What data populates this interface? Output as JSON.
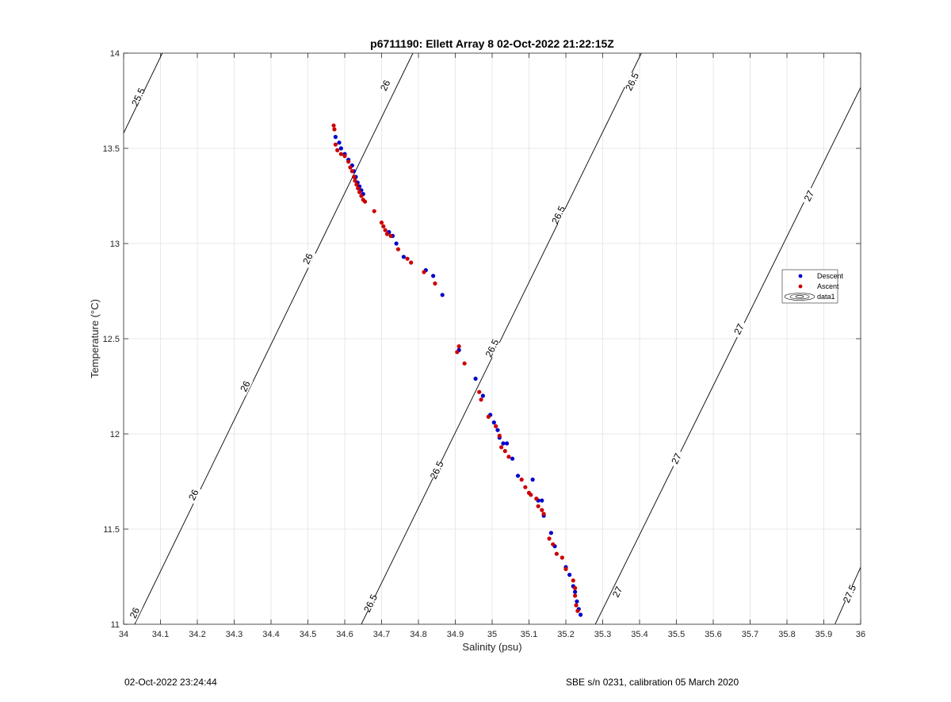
{
  "chart_data": {
    "type": "scatter",
    "title": "p6711190: Ellett Array 8 02-Oct-2022 21:22:15Z",
    "xlabel": "Salinity (psu)",
    "ylabel": "Temperature (°C)",
    "xlim": [
      34,
      36
    ],
    "ylim": [
      11,
      14
    ],
    "xticks": [
      "34",
      "34.1",
      "34.2",
      "34.3",
      "34.4",
      "34.5",
      "34.6",
      "34.7",
      "34.8",
      "34.9",
      "35",
      "35.1",
      "35.2",
      "35.3",
      "35.4",
      "35.5",
      "35.6",
      "35.7",
      "35.8",
      "35.9",
      "36"
    ],
    "yticks": [
      "11",
      "11.5",
      "12",
      "12.5",
      "13",
      "13.5",
      "14"
    ],
    "grid": true,
    "legend": {
      "placement": "right",
      "entries": [
        "Descent",
        "Ascent",
        "data1"
      ]
    },
    "series": [
      {
        "name": "Descent",
        "color": "#0000cc",
        "points": [
          [
            34.575,
            13.56
          ],
          [
            34.585,
            13.53
          ],
          [
            34.59,
            13.5
          ],
          [
            34.6,
            13.47
          ],
          [
            34.61,
            13.44
          ],
          [
            34.62,
            13.41
          ],
          [
            34.625,
            13.38
          ],
          [
            34.63,
            13.35
          ],
          [
            34.635,
            13.32
          ],
          [
            34.64,
            13.3
          ],
          [
            34.645,
            13.28
          ],
          [
            34.65,
            13.26
          ],
          [
            34.72,
            13.06
          ],
          [
            34.73,
            13.04
          ],
          [
            34.74,
            13.0
          ],
          [
            34.76,
            12.93
          ],
          [
            34.82,
            12.86
          ],
          [
            34.84,
            12.83
          ],
          [
            34.865,
            12.73
          ],
          [
            34.91,
            12.44
          ],
          [
            34.955,
            12.29
          ],
          [
            34.975,
            12.2
          ],
          [
            34.995,
            12.1
          ],
          [
            35.005,
            12.06
          ],
          [
            35.015,
            12.02
          ],
          [
            35.02,
            11.98
          ],
          [
            35.03,
            11.95
          ],
          [
            35.04,
            11.95
          ],
          [
            35.055,
            11.87
          ],
          [
            35.07,
            11.78
          ],
          [
            35.11,
            11.76
          ],
          [
            35.125,
            11.65
          ],
          [
            35.135,
            11.65
          ],
          [
            35.14,
            11.57
          ],
          [
            35.16,
            11.48
          ],
          [
            35.17,
            11.41
          ],
          [
            35.2,
            11.3
          ],
          [
            35.21,
            11.26
          ],
          [
            35.22,
            11.2
          ],
          [
            35.225,
            11.17
          ],
          [
            35.23,
            11.12
          ],
          [
            35.235,
            11.08
          ],
          [
            35.24,
            11.05
          ]
        ]
      },
      {
        "name": "Ascent",
        "color": "#cc0000",
        "points": [
          [
            34.57,
            13.62
          ],
          [
            34.572,
            13.6
          ],
          [
            34.575,
            13.52
          ],
          [
            34.58,
            13.49
          ],
          [
            34.59,
            13.47
          ],
          [
            34.6,
            13.46
          ],
          [
            34.61,
            13.43
          ],
          [
            34.615,
            13.4
          ],
          [
            34.62,
            13.38
          ],
          [
            34.625,
            13.35
          ],
          [
            34.628,
            13.33
          ],
          [
            34.632,
            13.31
          ],
          [
            34.636,
            13.29
          ],
          [
            34.64,
            13.27
          ],
          [
            34.645,
            13.25
          ],
          [
            34.65,
            13.23
          ],
          [
            34.655,
            13.22
          ],
          [
            34.68,
            13.17
          ],
          [
            34.7,
            13.11
          ],
          [
            34.705,
            13.09
          ],
          [
            34.71,
            13.07
          ],
          [
            34.715,
            13.05
          ],
          [
            34.725,
            13.04
          ],
          [
            34.745,
            12.97
          ],
          [
            34.77,
            12.92
          ],
          [
            34.78,
            12.9
          ],
          [
            34.815,
            12.85
          ],
          [
            34.845,
            12.79
          ],
          [
            34.905,
            12.43
          ],
          [
            34.91,
            12.46
          ],
          [
            34.925,
            12.37
          ],
          [
            34.965,
            12.22
          ],
          [
            34.97,
            12.18
          ],
          [
            34.99,
            12.09
          ],
          [
            35.01,
            12.04
          ],
          [
            35.02,
            11.99
          ],
          [
            35.025,
            11.93
          ],
          [
            35.035,
            11.91
          ],
          [
            35.045,
            11.88
          ],
          [
            35.08,
            11.76
          ],
          [
            35.09,
            11.72
          ],
          [
            35.1,
            11.69
          ],
          [
            35.105,
            11.68
          ],
          [
            35.12,
            11.66
          ],
          [
            35.125,
            11.62
          ],
          [
            35.135,
            11.6
          ],
          [
            35.14,
            11.58
          ],
          [
            35.155,
            11.45
          ],
          [
            35.165,
            11.42
          ],
          [
            35.175,
            11.37
          ],
          [
            35.19,
            11.35
          ],
          [
            35.2,
            11.29
          ],
          [
            35.22,
            11.23
          ],
          [
            35.225,
            11.19
          ],
          [
            35.225,
            11.15
          ],
          [
            35.228,
            11.1
          ],
          [
            35.232,
            11.07
          ]
        ]
      }
    ],
    "contours": [
      {
        "label": "25.5",
        "from": [
          34.0,
          13.58
        ],
        "to": [
          34.105,
          14.0
        ],
        "label_points": [
          [
            34.04,
            13.77
          ]
        ]
      },
      {
        "label": "26",
        "from": [
          34.03,
          11.0
        ],
        "to": [
          34.785,
          14.0
        ],
        "label_points": [
          [
            34.03,
            11.06
          ],
          [
            34.19,
            11.68
          ],
          [
            34.33,
            12.25
          ],
          [
            34.5,
            12.92
          ],
          [
            34.71,
            13.83
          ]
        ]
      },
      {
        "label": "26.5",
        "from": [
          34.645,
          11.0
        ],
        "to": [
          35.405,
          14.0
        ],
        "label_points": [
          [
            34.67,
            11.11
          ],
          [
            34.85,
            11.81
          ],
          [
            35.0,
            12.45
          ],
          [
            35.18,
            13.15
          ],
          [
            35.38,
            13.85
          ]
        ]
      },
      {
        "label": "27",
        "from": [
          35.28,
          11.0
        ],
        "to": [
          36.0,
          13.82
        ],
        "label_points": [
          [
            35.34,
            11.17
          ],
          [
            35.5,
            11.87
          ],
          [
            35.67,
            12.55
          ],
          [
            35.86,
            13.25
          ]
        ]
      },
      {
        "label": "27.5",
        "from": [
          35.93,
          11.0
        ],
        "to": [
          36.0,
          11.3
        ],
        "label_points": [
          [
            35.97,
            11.16
          ]
        ]
      }
    ]
  },
  "footer": {
    "left": "02-Oct-2022 23:24:44",
    "right": "SBE s/n 0231, calibration 05 March 2020"
  }
}
